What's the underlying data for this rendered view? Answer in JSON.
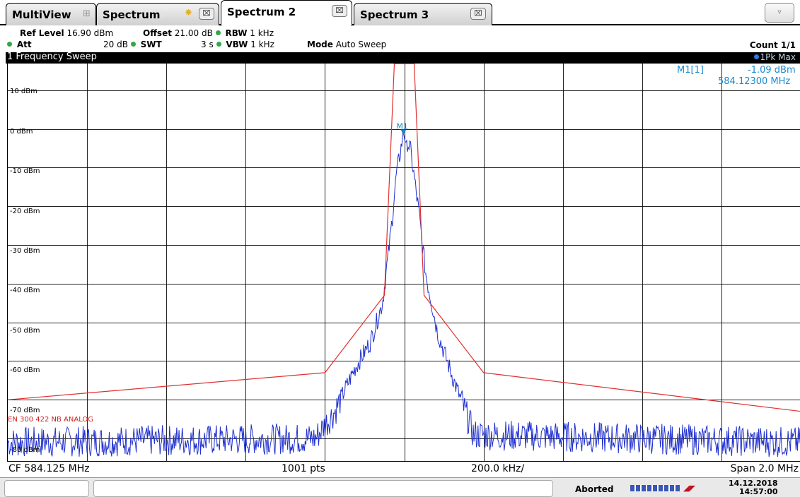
{
  "tabs": {
    "multiview": "MultiView",
    "spectrum": "Spectrum",
    "spectrum2": "Spectrum 2",
    "spectrum3": "Spectrum 3",
    "close_glyph": "⌧",
    "dropdown_glyph": "▿"
  },
  "settings": {
    "ref_level_label": "Ref Level",
    "ref_level_value": "16.90 dBm",
    "att_label": "Att",
    "att_value": "20 dB",
    "offset_label": "Offset",
    "offset_value": "21.00 dB",
    "swt_label": "SWT",
    "swt_value": "3 s",
    "rbw_label": "RBW",
    "rbw_value": "1 kHz",
    "vbw_label": "VBW",
    "vbw_value": "1 kHz",
    "mode_label": "Mode",
    "mode_value": "Auto Sweep",
    "count": "Count 1/1"
  },
  "diagram": {
    "title": "1 Frequency Sweep",
    "trace_label": "1Pk Max"
  },
  "y_axis": {
    "labels": [
      "10 dBm",
      "0 dBm",
      "-10 dBm",
      "-20 dBm",
      "-30 dBm",
      "-40 dBm",
      "-50 dBm",
      "-60 dBm",
      "-70 dBm",
      "-80 dBm"
    ]
  },
  "limit_line_name": "EN 300 422 NB ANALOG",
  "marker": {
    "name": "M1[1]",
    "level": "-1.09 dBm",
    "frequency": "584.12300 MHz",
    "label": "M1"
  },
  "bottom": {
    "center_freq": "CF 584.125 MHz",
    "points": "1001 pts",
    "per_div": "200.0 kHz/",
    "span": "Span 2.0 MHz"
  },
  "status": {
    "state": "Aborted",
    "date": "14.12.2018",
    "time": "14:57:00"
  },
  "colors": {
    "trace": "#2030d0",
    "limit_line": "#e03030",
    "marker": "#1a8ccc",
    "grid": "#000000"
  },
  "chart_data": {
    "type": "line",
    "ylim": [
      -86,
      16.9
    ],
    "x_range_mhz": [
      583.125,
      585.125
    ],
    "grid": true,
    "limit_line_dbm": [
      {
        "f_mhz": 583.125,
        "dbm": -70
      },
      {
        "f_mhz": 583.925,
        "dbm": -63
      },
      {
        "f_mhz": 584.075,
        "dbm": -43
      },
      {
        "f_mhz": 584.1,
        "dbm": 16.9
      },
      {
        "f_mhz": 584.15,
        "dbm": 16.9
      },
      {
        "f_mhz": 584.175,
        "dbm": -43
      },
      {
        "f_mhz": 584.325,
        "dbm": -63
      },
      {
        "f_mhz": 585.125,
        "dbm": -73
      }
    ],
    "trace_envelope_dbm": [
      {
        "f_mhz": 583.125,
        "dbm": -81
      },
      {
        "f_mhz": 583.9,
        "dbm": -80
      },
      {
        "f_mhz": 583.95,
        "dbm": -73
      },
      {
        "f_mhz": 584.0,
        "dbm": -62
      },
      {
        "f_mhz": 584.04,
        "dbm": -55
      },
      {
        "f_mhz": 584.07,
        "dbm": -45
      },
      {
        "f_mhz": 584.09,
        "dbm": -28
      },
      {
        "f_mhz": 584.105,
        "dbm": -12
      },
      {
        "f_mhz": 584.123,
        "dbm": -1.09
      },
      {
        "f_mhz": 584.14,
        "dbm": -5
      },
      {
        "f_mhz": 584.16,
        "dbm": -20
      },
      {
        "f_mhz": 584.18,
        "dbm": -38
      },
      {
        "f_mhz": 584.21,
        "dbm": -53
      },
      {
        "f_mhz": 584.25,
        "dbm": -65
      },
      {
        "f_mhz": 584.3,
        "dbm": -79
      },
      {
        "f_mhz": 585.125,
        "dbm": -81
      }
    ]
  }
}
